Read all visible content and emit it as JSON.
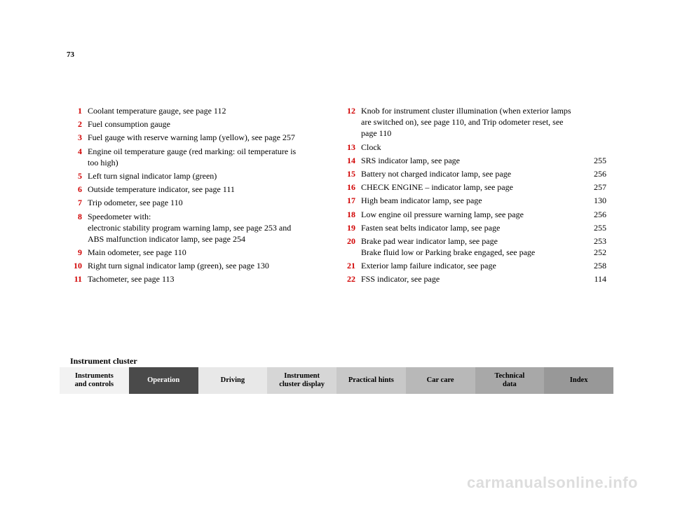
{
  "page_number": "73",
  "section_label": "Instrument cluster",
  "columns": {
    "left": [
      {
        "num": "1",
        "desc": "Coolant temperature gauge, see page 112",
        "pg": ""
      },
      {
        "num": "2",
        "desc": "Fuel consumption gauge",
        "pg": ""
      },
      {
        "num": "3",
        "desc": "Fuel gauge with reserve warning lamp (yellow), see page 257",
        "pg": ""
      },
      {
        "num": "4",
        "desc": "Engine oil temperature gauge (red marking: oil temperature is too high)",
        "pg": ""
      },
      {
        "num": "5",
        "desc": "Left turn signal indicator lamp (green)",
        "pg": ""
      },
      {
        "num": "6",
        "desc": "Outside temperature indicator, see page 111",
        "pg": ""
      },
      {
        "num": "7",
        "desc": "Trip odometer, see page 110",
        "pg": ""
      },
      {
        "num": "8",
        "desc": "Speedometer with:\nelectronic stability program warning lamp, see page 253 and\nABS malfunction indicator lamp, see page 254",
        "pg": ""
      },
      {
        "num": "9",
        "desc": "Main odometer, see page 110",
        "pg": ""
      },
      {
        "num": "10",
        "desc": "Right turn signal indicator lamp (green), see page 130",
        "pg": ""
      },
      {
        "num": "11",
        "desc": "Tachometer, see page 113",
        "pg": ""
      }
    ],
    "right": [
      {
        "num": "12",
        "desc": "Knob for instrument cluster illumination (when exterior lamps are switched on), see page 110, and Trip odometer reset, see page 110",
        "pg": ""
      },
      {
        "num": "13",
        "desc": "Clock",
        "pg": ""
      },
      {
        "num": "14",
        "desc": "SRS indicator lamp, see page",
        "pg": "255"
      },
      {
        "num": "15",
        "desc": "Battery not charged indicator lamp, see page",
        "pg": "256"
      },
      {
        "num": "16",
        "desc": "CHECK ENGINE – indicator lamp, see page",
        "pg": "257"
      },
      {
        "num": "17",
        "desc": "High beam indicator lamp, see page",
        "pg": "130"
      },
      {
        "num": "18",
        "desc": "Low engine oil pressure warning lamp, see page",
        "pg": "256"
      },
      {
        "num": "19",
        "desc": "Fasten seat belts indicator lamp, see page",
        "pg": "255"
      },
      {
        "num": "20",
        "desc": "Brake pad wear indicator lamp, see page\nBrake fluid low or Parking brake engaged, see page",
        "pg": "253\n252"
      },
      {
        "num": "21",
        "desc": "Exterior lamp failure indicator, see page",
        "pg": "258"
      },
      {
        "num": "22",
        "desc": "FSS indicator, see page",
        "pg": "114"
      }
    ]
  },
  "tabs": [
    {
      "label": "Instruments\nand controls",
      "bg": "#f2f2f2",
      "color": "#000000"
    },
    {
      "label": "Operation",
      "bg": "#4a4a4a",
      "color": "#ffffff"
    },
    {
      "label": "Driving",
      "bg": "#e8e8e8",
      "color": "#000000"
    },
    {
      "label": "Instrument\ncluster display",
      "bg": "#d6d6d6",
      "color": "#000000"
    },
    {
      "label": "Practical hints",
      "bg": "#c8c8c8",
      "color": "#000000"
    },
    {
      "label": "Car care",
      "bg": "#b8b8b8",
      "color": "#000000"
    },
    {
      "label": "Technical\ndata",
      "bg": "#a8a8a8",
      "color": "#000000"
    },
    {
      "label": "Index",
      "bg": "#989898",
      "color": "#000000"
    }
  ],
  "watermark": "carmanualsonline.info"
}
